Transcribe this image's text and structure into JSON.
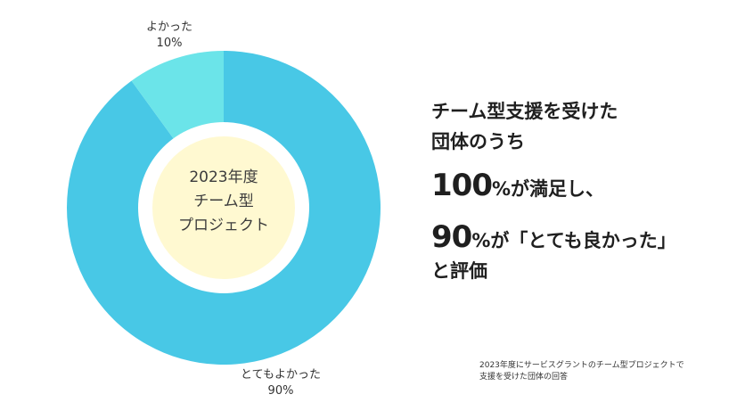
{
  "chart_data": {
    "type": "pie",
    "donut": true,
    "slices": [
      {
        "label": "とてもよかった",
        "value": 90,
        "value_text": "90%",
        "color": "#48c8e6"
      },
      {
        "label": "よかった",
        "value": 10,
        "value_text": "10%",
        "color": "#6be4e9"
      }
    ],
    "center_lines": [
      "2023年度",
      "チーム型",
      "プロジェクト"
    ],
    "center_color": "#fff9d1"
  },
  "headline": {
    "lead": [
      "チーム型支援を受けた",
      "団体のうち"
    ],
    "line1_big": "100",
    "line1_rest": "%が満足し、",
    "line2_big": "90",
    "line2_rest": "%が「とても良かった」",
    "line3": "と評価"
  },
  "note": [
    "2023年度にサービスグラントのチーム型プロジェクトで",
    "支援を受けた団体の回答"
  ]
}
